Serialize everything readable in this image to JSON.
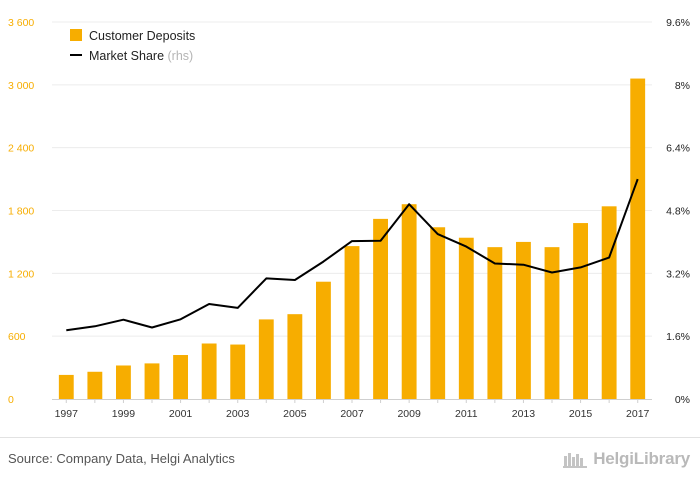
{
  "chart_data": {
    "type": "bar",
    "categories": [
      "1997",
      "1998",
      "1999",
      "2000",
      "2001",
      "2002",
      "2003",
      "2004",
      "2005",
      "2006",
      "2007",
      "2008",
      "2009",
      "2010",
      "2011",
      "2012",
      "2013",
      "2014",
      "2015",
      "2016",
      "2017"
    ],
    "series": [
      {
        "name": "Customer Deposits",
        "type": "bar",
        "axis": "left",
        "color": "#f7ad00",
        "values": [
          230,
          260,
          320,
          340,
          420,
          530,
          520,
          760,
          810,
          1120,
          1460,
          1720,
          1860,
          1640,
          1540,
          1450,
          1500,
          1450,
          1680,
          1840,
          3060
        ]
      },
      {
        "name": "Market Share",
        "name_suffix": "(rhs)",
        "type": "line",
        "axis": "right",
        "color": "#000000",
        "values": [
          1.75,
          1.85,
          2.02,
          1.82,
          2.03,
          2.42,
          2.32,
          3.07,
          3.03,
          3.5,
          4.02,
          4.03,
          4.96,
          4.2,
          3.88,
          3.45,
          3.42,
          3.22,
          3.35,
          3.6,
          5.6
        ]
      }
    ],
    "x_tick_labels": [
      "1997",
      "1999",
      "2001",
      "2003",
      "2005",
      "2007",
      "2009",
      "2011",
      "2013",
      "2015",
      "2017"
    ],
    "y_left": {
      "ticks": [
        0,
        600,
        1200,
        1800,
        2400,
        3000,
        3600
      ],
      "tick_labels": [
        "0",
        "600",
        "1 200",
        "1 800",
        "2 400",
        "3 000",
        "3 600"
      ],
      "lim": [
        0,
        3600
      ],
      "color": "#f7ad00"
    },
    "y_right": {
      "ticks": [
        0,
        1.6,
        3.2,
        4.8,
        6.4,
        8,
        9.6
      ],
      "tick_labels": [
        "0%",
        "1.6%",
        "3.2%",
        "4.8%",
        "6.4%",
        "8%",
        "9.6%"
      ],
      "lim": [
        0,
        9.6
      ],
      "color": "#222222"
    },
    "grid": "horizontal",
    "legend": "top-left"
  },
  "footer": {
    "source": "Source: Company Data, Helgi Analytics",
    "brand": "HelgiLibrary"
  }
}
